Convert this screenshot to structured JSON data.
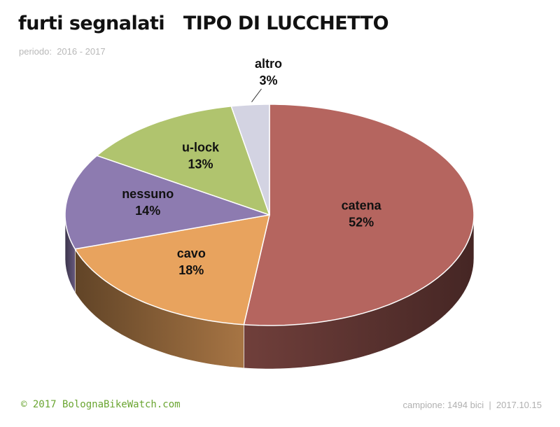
{
  "header": {
    "title": "furti segnalati   TIPO DI LUCCHETTO",
    "subtitle": "periodo:  2016 - 2017"
  },
  "footer": {
    "copyright": "© 2017  BolognaBikeWatch.com",
    "info": "campione: 1494 bici  |  2017.10.15"
  },
  "chart_data": {
    "type": "pie",
    "title": "furti segnalati   TIPO DI LUCCHETTO",
    "subtitle": "periodo:  2016 - 2017",
    "style": "3d",
    "slices": [
      {
        "label": "catena",
        "value": 52,
        "display": "52%",
        "color": "#b5655f"
      },
      {
        "label": "cavo",
        "value": 18,
        "display": "18%",
        "color": "#e8a35e"
      },
      {
        "label": "nessuno",
        "value": 14,
        "display": "14%",
        "color": "#8d7bb0"
      },
      {
        "label": "u-lock",
        "value": 13,
        "display": "13%",
        "color": "#b0c46e"
      },
      {
        "label": "altro",
        "value": 3,
        "display": "3%",
        "color": "#d3d3e2"
      }
    ]
  }
}
